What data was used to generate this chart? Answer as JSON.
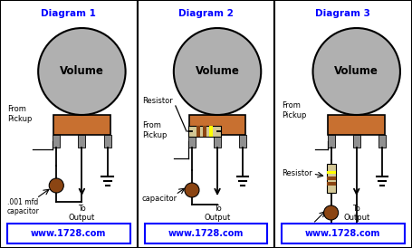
{
  "bg_color": "#ffffff",
  "title_color": "#0000ff",
  "url_color": "#0000ff",
  "pot_knob_color": "#b0b0b0",
  "pot_body_color": "#c87030",
  "lug_color": "#909090",
  "cap_color": "#8B4513",
  "res_body_color": "#d4c896",
  "res_band1": "#8B4513",
  "res_band2": "#8B4513",
  "res_band3": "#ffff00",
  "diagrams": [
    "Diagram 1",
    "Diagram 2",
    "Diagram 3"
  ],
  "url": "www.1728.com"
}
